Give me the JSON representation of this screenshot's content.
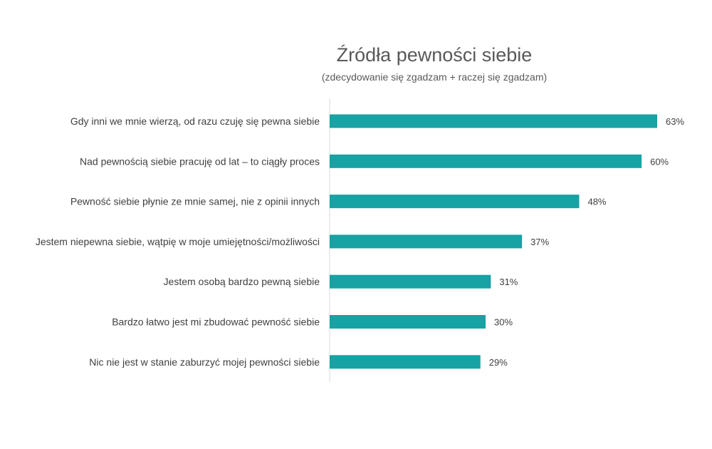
{
  "chart_data": {
    "type": "bar",
    "orientation": "horizontal",
    "title": "Źródła pewności siebie",
    "subtitle": "(zdecydowanie się zgadzam + raczej się zgadzam)",
    "categories": [
      "Gdy inni we mnie wierzą, od razu czuję się pewna siebie",
      "Nad pewnością siebie pracuję od lat – to ciągły proces",
      "Pewność siebie płynie ze mnie samej, nie z opinii innych",
      "Jestem niepewna siebie, wątpię w moje umiejętności/możliwości",
      "Jestem osobą bardzo pewną siebie",
      "Bardzo łatwo jest mi zbudować pewność siebie",
      "Nic nie jest w stanie zaburzyć mojej pewności siebie"
    ],
    "values": [
      63,
      60,
      48,
      37,
      31,
      30,
      29
    ],
    "value_labels": [
      "63%",
      "60%",
      "48%",
      "37%",
      "31%",
      "30%",
      "29%"
    ],
    "unit": "%",
    "xlim": [
      0,
      63
    ],
    "grid": false,
    "legend": "none",
    "bar_color": "#17A2A4",
    "text_color": "#404040"
  }
}
